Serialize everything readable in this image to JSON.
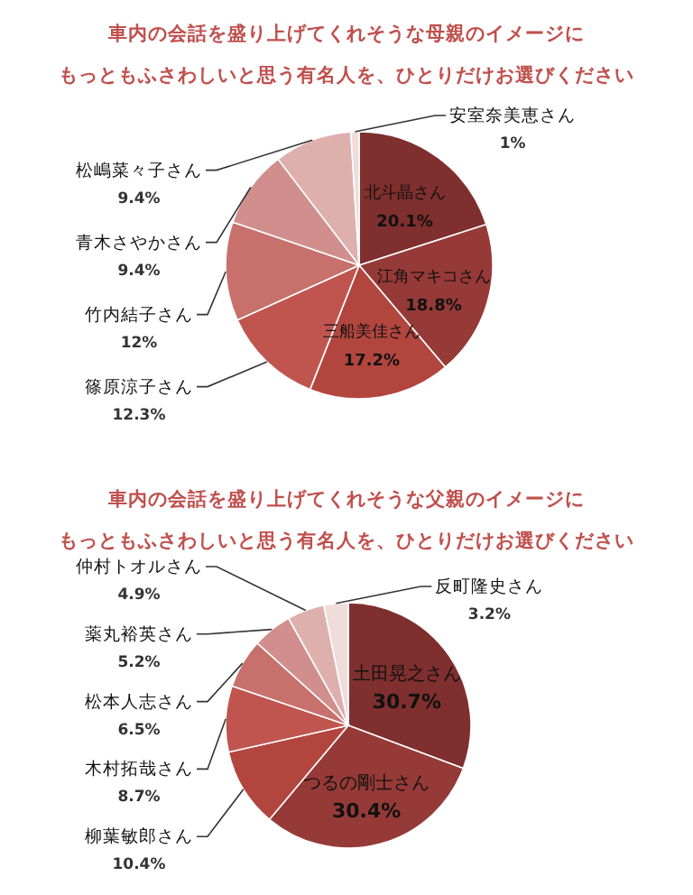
{
  "chart_data": [
    {
      "type": "pie",
      "title": "車内の会話を盛り上げてくれそうな母親のイメージに",
      "subtitle": "もっともふさわしいと思う有名人を、ひとりだけお選びください",
      "categories": [
        "北斗晶さん",
        "江角マキコさん",
        "三船美佳さん",
        "篠原涼子さん",
        "竹内結子さん",
        "青木さやかさん",
        "松嶋菜々子さん",
        "安室奈美恵さん"
      ],
      "values": [
        20.1,
        18.8,
        17.2,
        12.3,
        12,
        9.4,
        9.4,
        1
      ],
      "value_labels": [
        "20.1%",
        "18.8%",
        "17.2%",
        "12.3%",
        "12%",
        "9.4%",
        "9.4%",
        "1%"
      ],
      "colors": [
        "#7f2f2d",
        "#963a37",
        "#b2463f",
        "#c05550",
        "#c7706c",
        "#d08f8c",
        "#ddb0ae",
        "#efdcdb"
      ]
    },
    {
      "type": "pie",
      "title": "車内の会話を盛り上げてくれそうな父親のイメージに",
      "subtitle": "もっともふさわしいと思う有名人を、ひとりだけお選びください",
      "categories": [
        "土田晃之さん",
        "つるの剛士さん",
        "柳葉敏郎さん",
        "木村拓哉さん",
        "松本人志さん",
        "薬丸裕英さん",
        "仲村トオルさん",
        "反町隆史さん"
      ],
      "values": [
        30.7,
        30.4,
        10.4,
        8.7,
        6.5,
        5.2,
        4.9,
        3.2
      ],
      "value_labels": [
        "30.7%",
        "30.4%",
        "10.4%",
        "8.7%",
        "6.5%",
        "5.2%",
        "4.9%",
        "3.2%"
      ],
      "colors": [
        "#7f2f2d",
        "#963a37",
        "#b2463f",
        "#c05550",
        "#c7706c",
        "#d08f8c",
        "#ddb0ae",
        "#efdcdb"
      ]
    }
  ]
}
